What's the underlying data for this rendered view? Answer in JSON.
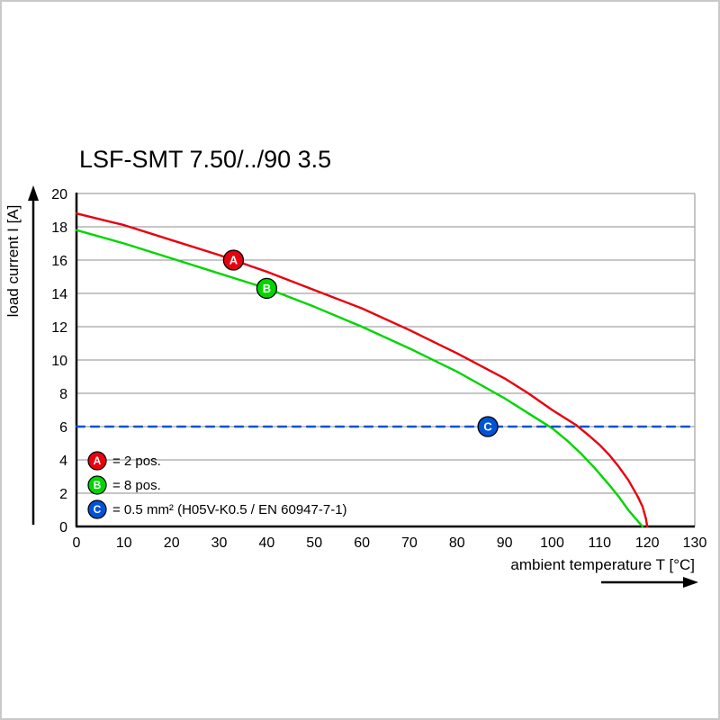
{
  "page": {
    "title": "LSF-SMT 7.50/../90 3.5"
  },
  "chart_data": {
    "type": "line",
    "title": "LSF-SMT 7.50/../90 3.5",
    "xlabel": "ambient temperature T [°C]",
    "ylabel": "load current I [A]",
    "xlim": [
      0,
      130
    ],
    "ylim": [
      0,
      20
    ],
    "xticks": [
      0,
      10,
      20,
      30,
      40,
      50,
      60,
      70,
      80,
      90,
      100,
      110,
      120,
      130
    ],
    "yticks": [
      0,
      2,
      4,
      6,
      8,
      10,
      12,
      14,
      16,
      18,
      20
    ],
    "grid": "horizontal",
    "legend_position": "inside bottom-left",
    "series": [
      {
        "key": "A",
        "label": "2 pos.",
        "legend_text": "= 2 pos.",
        "color": "#e8000e",
        "dashed": false,
        "marker": {
          "x": 33,
          "y": 16
        },
        "points": [
          [
            0,
            18.8
          ],
          [
            10,
            18.1
          ],
          [
            20,
            17.2
          ],
          [
            30,
            16.3
          ],
          [
            33,
            16.0
          ],
          [
            40,
            15.3
          ],
          [
            50,
            14.2
          ],
          [
            60,
            13.1
          ],
          [
            70,
            11.8
          ],
          [
            80,
            10.4
          ],
          [
            90,
            8.9
          ],
          [
            95,
            8.0
          ],
          [
            100,
            7.0
          ],
          [
            105,
            6.1
          ],
          [
            108,
            5.4
          ],
          [
            110,
            4.9
          ],
          [
            112,
            4.3
          ],
          [
            114,
            3.6
          ],
          [
            116,
            2.8
          ],
          [
            118,
            1.8
          ],
          [
            119,
            1.2
          ],
          [
            119.7,
            0.5
          ],
          [
            120,
            0
          ]
        ]
      },
      {
        "key": "B",
        "label": "8 pos.",
        "legend_text": "= 8 pos.",
        "color": "#00d500",
        "dashed": false,
        "marker": {
          "x": 40,
          "y": 14.3
        },
        "points": [
          [
            0,
            17.8
          ],
          [
            10,
            17.0
          ],
          [
            20,
            16.1
          ],
          [
            30,
            15.2
          ],
          [
            40,
            14.3
          ],
          [
            50,
            13.2
          ],
          [
            60,
            12.0
          ],
          [
            70,
            10.7
          ],
          [
            80,
            9.3
          ],
          [
            90,
            7.7
          ],
          [
            95,
            6.8
          ],
          [
            100,
            5.9
          ],
          [
            103,
            5.2
          ],
          [
            106,
            4.4
          ],
          [
            109,
            3.5
          ],
          [
            112,
            2.5
          ],
          [
            114,
            1.8
          ],
          [
            116,
            1.0
          ],
          [
            117.5,
            0.5
          ],
          [
            119,
            0
          ]
        ]
      },
      {
        "key": "C",
        "label": "0.5 mm² (H05V-K0.5 / EN 60947-7-1)",
        "legend_text": "= 0.5 mm² (H05V-K0.5 / EN 60947-7-1)",
        "color": "#0053d6",
        "dashed": true,
        "marker": {
          "x": 86.5,
          "y": 6
        },
        "points": [
          [
            0,
            6
          ],
          [
            130,
            6
          ]
        ]
      }
    ]
  }
}
